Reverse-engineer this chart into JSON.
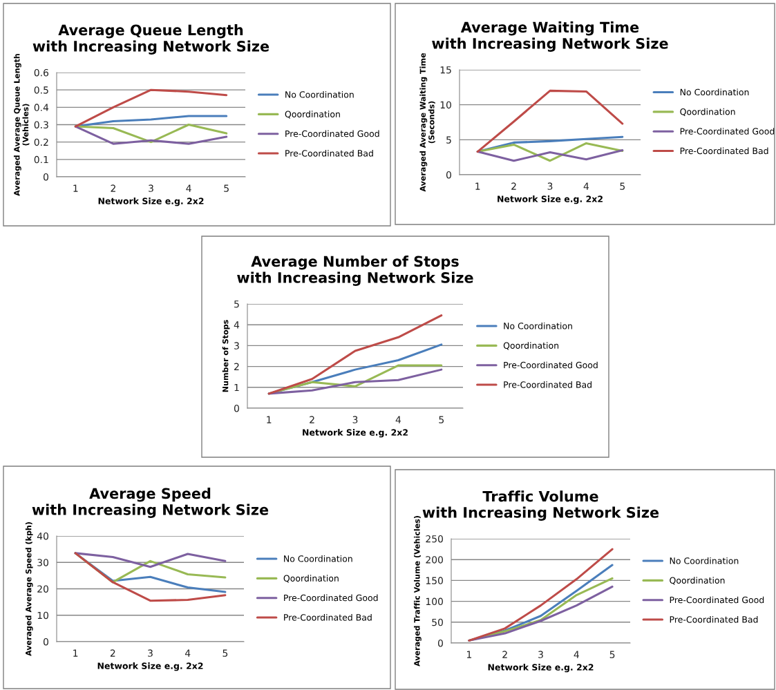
{
  "chart_data": [
    {
      "type": "line",
      "title": "Average Queue Length\nwith Increasing Network Size",
      "xlabel": "Network Size e.g. 2x2",
      "ylabel": "Averaged Average Queue Length\n(Vehicles)",
      "categories": [
        "1",
        "2",
        "3",
        "4",
        "5"
      ],
      "ylim": [
        0,
        0.6
      ],
      "yticks": [
        {
          "value": 0,
          "label": "0"
        },
        0.1,
        0.2,
        0.3,
        0.4,
        0.5,
        0.6
      ],
      "grid": "y",
      "legend": "right",
      "series": [
        {
          "name": "No Coordination",
          "color": "#4a7ebb",
          "values": [
            0.29,
            0.32,
            0.33,
            0.35,
            0.35
          ]
        },
        {
          "name": "Qoordination",
          "color": "#98b954",
          "values": [
            0.29,
            0.28,
            0.2,
            0.3,
            0.25
          ]
        },
        {
          "name": "Pre-Coordinated Good",
          "color": "#7d60a0",
          "values": [
            0.29,
            0.19,
            0.21,
            0.19,
            0.23
          ]
        },
        {
          "name": "Pre-Coordinated Bad",
          "color": "#be4b48",
          "values": [
            0.29,
            0.4,
            0.5,
            0.49,
            0.47
          ]
        }
      ]
    },
    {
      "type": "line",
      "title": "Average Waiting Time\nwith Increasing Network Size",
      "xlabel": "Network Size e.g. 2x2",
      "ylabel": "Averaged Average Waiting Time\n(Seconds)",
      "categories": [
        "1",
        "2",
        "3",
        "4",
        "5"
      ],
      "ylim": [
        0,
        15
      ],
      "yticks": [
        0,
        5,
        10,
        15
      ],
      "grid": "y",
      "legend": "right",
      "series": [
        {
          "name": "No Coordination",
          "color": "#4a7ebb",
          "values": [
            3.3,
            4.6,
            4.8,
            5.1,
            5.4
          ]
        },
        {
          "name": "Qoordination",
          "color": "#98b954",
          "values": [
            3.3,
            4.3,
            2.0,
            4.5,
            3.4
          ]
        },
        {
          "name": "Pre-Coordinated Good",
          "color": "#7d60a0",
          "values": [
            3.3,
            2.0,
            3.2,
            2.2,
            3.5
          ]
        },
        {
          "name": "Pre-Coordinated Bad",
          "color": "#be4b48",
          "values": [
            3.3,
            7.6,
            12.0,
            11.9,
            7.3
          ]
        }
      ]
    },
    {
      "type": "line",
      "title": "Average Number of Stops\nwith Increasing Network Size",
      "xlabel": "Network Size e.g. 2x2",
      "ylabel": "Number of Stops",
      "categories": [
        "1",
        "2",
        "3",
        "4",
        "5"
      ],
      "ylim": [
        0,
        5
      ],
      "yticks": [
        0,
        1,
        2,
        3,
        4,
        5
      ],
      "grid": "y",
      "legend": "right",
      "series": [
        {
          "name": "No Coordination",
          "color": "#4a7ebb",
          "values": [
            0.7,
            1.25,
            1.85,
            2.3,
            3.05
          ]
        },
        {
          "name": "Qoordination",
          "color": "#98b954",
          "values": [
            0.7,
            1.25,
            1.05,
            2.05,
            2.05
          ]
        },
        {
          "name": "Pre-Coordinated Good",
          "color": "#7d60a0",
          "values": [
            0.7,
            0.85,
            1.25,
            1.35,
            1.85
          ]
        },
        {
          "name": "Pre-Coordinated Bad",
          "color": "#be4b48",
          "values": [
            0.7,
            1.4,
            2.75,
            3.4,
            4.45
          ]
        }
      ]
    },
    {
      "type": "line",
      "title": "Average Speed\nwith Increasing Network Size",
      "xlabel": "Network Size e.g. 2x2",
      "ylabel": "Averaged Average Speed (kph)",
      "categories": [
        "1",
        "2",
        "3",
        "4",
        "5"
      ],
      "ylim": [
        0,
        40
      ],
      "yticks": [
        0,
        10,
        20,
        30,
        40
      ],
      "grid": "y",
      "legend": "right",
      "series": [
        {
          "name": "No Coordination",
          "color": "#4a7ebb",
          "values": [
            33.5,
            23,
            24.5,
            20.5,
            18.8
          ]
        },
        {
          "name": "Qoordination",
          "color": "#98b954",
          "values": [
            33.5,
            22.5,
            30.5,
            25.5,
            24.3
          ]
        },
        {
          "name": "Pre-Coordinated Good",
          "color": "#7d60a0",
          "values": [
            33.5,
            32,
            28.3,
            33.2,
            30.5
          ]
        },
        {
          "name": "Pre-Coordinated Bad",
          "color": "#be4b48",
          "values": [
            33.5,
            22.5,
            15.5,
            15.8,
            17.6
          ]
        }
      ]
    },
    {
      "type": "line",
      "title": "Traffic Volume\nwith Increasing Network Size",
      "xlabel": "Network Size e.g. 2x2",
      "ylabel": "Averaged Traffic Volume (Vehicles)",
      "categories": [
        "1",
        "2",
        "3",
        "4",
        "5"
      ],
      "ylim": [
        0,
        250
      ],
      "yticks": [
        0,
        50,
        100,
        150,
        200,
        250
      ],
      "grid": "y",
      "legend": "right",
      "series": [
        {
          "name": "No Coordination",
          "color": "#4a7ebb",
          "values": [
            6,
            30,
            65,
            125,
            187
          ]
        },
        {
          "name": "Qoordination",
          "color": "#98b954",
          "values": [
            6,
            28,
            55,
            115,
            155
          ]
        },
        {
          "name": "Pre-Coordinated Good",
          "color": "#7d60a0",
          "values": [
            6,
            23,
            53,
            90,
            135
          ]
        },
        {
          "name": "Pre-Coordinated Bad",
          "color": "#be4b48",
          "values": [
            6,
            35,
            90,
            153,
            225
          ]
        }
      ]
    }
  ]
}
